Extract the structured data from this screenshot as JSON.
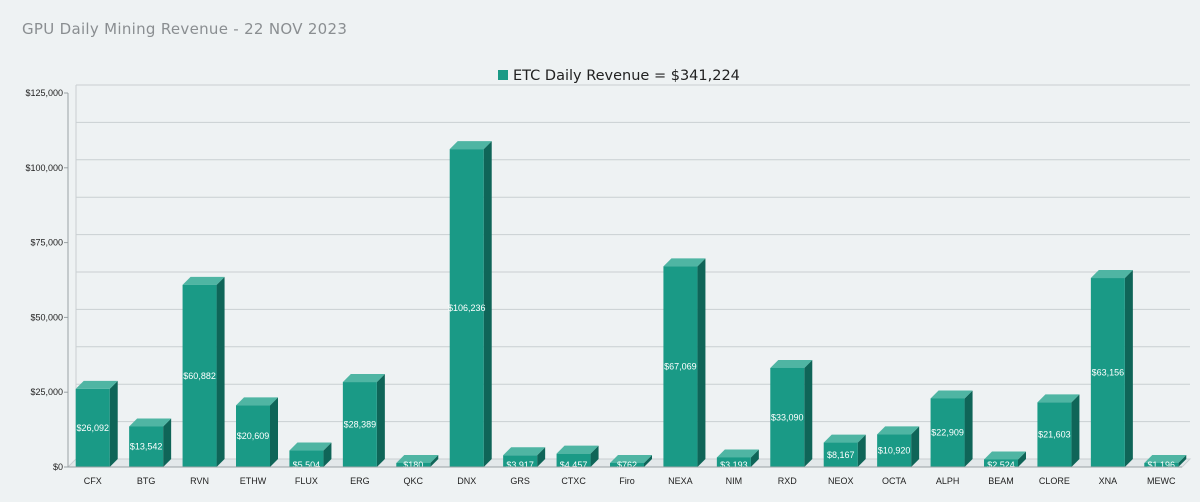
{
  "page": {
    "title": "GPU Daily Mining Revenue - 22 NOV 2023"
  },
  "colors": {
    "bar_front": "#1a9a86",
    "bar_top": "#4fb5a3",
    "bar_side": "#0f6558",
    "grid": "#c9cfd2",
    "background": "#eef2f3"
  },
  "chart_data": {
    "type": "bar",
    "title": "",
    "xlabel": "",
    "ylabel": "",
    "ylim": [
      0,
      125000
    ],
    "yticks": [
      0,
      25000,
      50000,
      75000,
      100000,
      125000
    ],
    "ytick_labels": [
      "$0",
      "$25,000",
      "$50,000",
      "$75,000",
      "$100,000",
      "$125,000"
    ],
    "grid": true,
    "legend_position": "top-center",
    "categories": [
      "CFX",
      "BTG",
      "RVN",
      "ETHW",
      "FLUX",
      "ERG",
      "QKC",
      "DNX",
      "GRS",
      "CTXC",
      "Firo",
      "NEXA",
      "NIM",
      "RXD",
      "NEOX",
      "OCTA",
      "ALPH",
      "BEAM",
      "CLORE",
      "XNA",
      "MEWC"
    ],
    "series": [
      {
        "name": "ETC Daily Revenue = $341,224",
        "values": [
          26092,
          13542,
          60882,
          20609,
          5504,
          28389,
          180,
          106236,
          3917,
          4457,
          762,
          67069,
          3193,
          33090,
          8167,
          10920,
          22909,
          2524,
          21603,
          63156,
          1196
        ],
        "value_labels": [
          "$26,092",
          "$13,542",
          "$60,882",
          "$20,609",
          "$5,504",
          "$28,389",
          "$180",
          "$106,236",
          "$3,917",
          "$4,457",
          "$762",
          "$67,069",
          "$3,193",
          "$33,090",
          "$8,167",
          "$10,920",
          "$22,909",
          "$2,524",
          "$21,603",
          "$63,156",
          "$1,196"
        ]
      }
    ]
  }
}
